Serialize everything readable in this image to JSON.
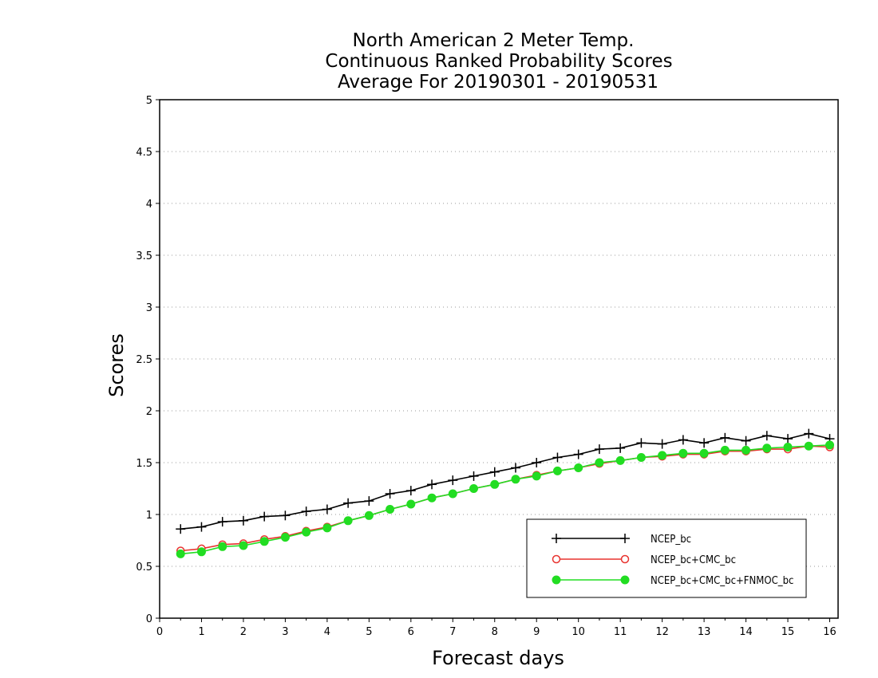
{
  "chart_data": {
    "type": "line",
    "title_lines": [
      "North American 2 Meter Temp.",
      "Continuous Ranked Probability Scores",
      "Average For 20190301 - 20190531"
    ],
    "xlabel": "Forecast days",
    "ylabel": "Scores",
    "xlim": [
      0,
      16.2
    ],
    "ylim": [
      0,
      5
    ],
    "xticks": [
      "0",
      "1",
      "2",
      "3",
      "4",
      "5",
      "6",
      "7",
      "8",
      "9",
      "10",
      "11",
      "12",
      "13",
      "14",
      "15",
      "16"
    ],
    "yticks": [
      "0",
      "0.5",
      "1",
      "1.5",
      "2",
      "2.5",
      "3",
      "3.5",
      "4",
      "4.5",
      "5"
    ],
    "grid": "horizontal-dotted",
    "legend_position": "lower-right",
    "x": [
      0.5,
      1,
      1.5,
      2,
      2.5,
      3,
      3.5,
      4,
      4.5,
      5,
      5.5,
      6,
      6.5,
      7,
      7.5,
      8,
      8.5,
      9,
      9.5,
      10,
      10.5,
      11,
      11.5,
      12,
      12.5,
      13,
      13.5,
      14,
      14.5,
      15,
      15.5,
      16
    ],
    "series": [
      {
        "name": "NCEP_bc",
        "color": "#000000",
        "marker": "plus",
        "values": [
          0.86,
          0.88,
          0.93,
          0.94,
          0.98,
          0.99,
          1.03,
          1.05,
          1.11,
          1.13,
          1.2,
          1.23,
          1.29,
          1.33,
          1.37,
          1.41,
          1.45,
          1.5,
          1.55,
          1.58,
          1.63,
          1.64,
          1.69,
          1.68,
          1.72,
          1.69,
          1.74,
          1.71,
          1.76,
          1.73,
          1.78,
          1.73
        ]
      },
      {
        "name": "NCEP_bc+CMC_bc",
        "color": "#e8332f",
        "marker": "open-circle",
        "values": [
          0.65,
          0.67,
          0.71,
          0.72,
          0.76,
          0.79,
          0.84,
          0.88,
          0.94,
          0.99,
          1.05,
          1.1,
          1.16,
          1.2,
          1.25,
          1.29,
          1.34,
          1.38,
          1.42,
          1.45,
          1.49,
          1.52,
          1.55,
          1.56,
          1.58,
          1.58,
          1.61,
          1.61,
          1.63,
          1.63,
          1.66,
          1.65
        ]
      },
      {
        "name": "NCEP_bc+CMC_bc+FNMOC_bc",
        "color": "#22dd22",
        "marker": "filled-circle",
        "values": [
          0.62,
          0.64,
          0.69,
          0.7,
          0.74,
          0.78,
          0.83,
          0.87,
          0.94,
          0.99,
          1.05,
          1.1,
          1.16,
          1.2,
          1.25,
          1.29,
          1.34,
          1.37,
          1.42,
          1.45,
          1.5,
          1.52,
          1.55,
          1.57,
          1.59,
          1.59,
          1.62,
          1.62,
          1.64,
          1.65,
          1.66,
          1.67
        ]
      }
    ]
  }
}
